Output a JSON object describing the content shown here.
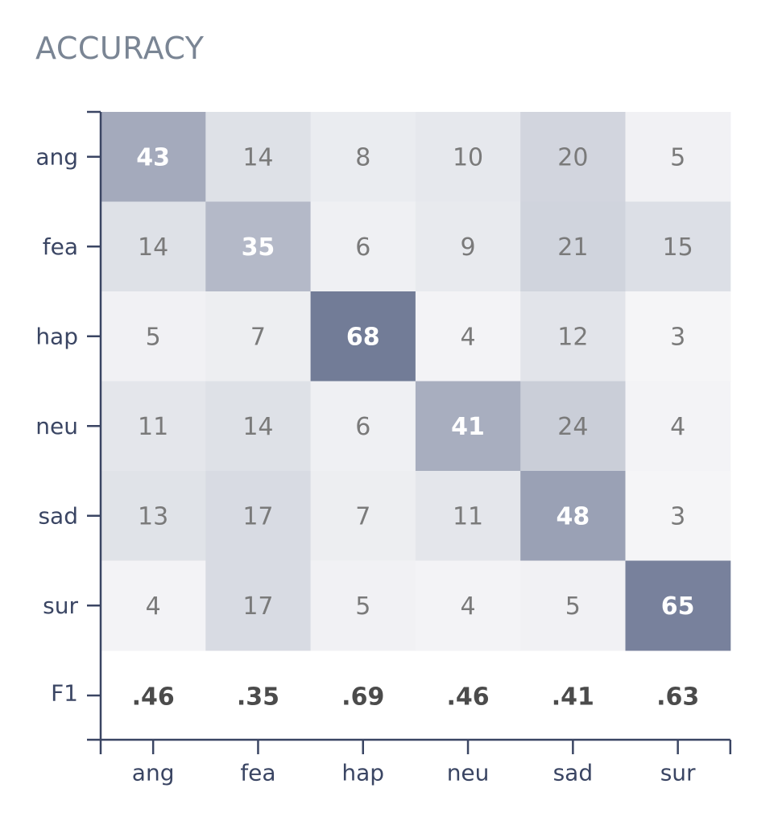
{
  "chart_data": {
    "type": "heatmap",
    "title": "ACCURACY",
    "rows": [
      "ang",
      "fea",
      "hap",
      "neu",
      "sad",
      "sur"
    ],
    "columns": [
      "ang",
      "fea",
      "hap",
      "neu",
      "sad",
      "sur"
    ],
    "values": [
      [
        43,
        14,
        8,
        10,
        20,
        5
      ],
      [
        14,
        35,
        6,
        9,
        21,
        15
      ],
      [
        5,
        7,
        68,
        4,
        12,
        3
      ],
      [
        11,
        14,
        6,
        41,
        24,
        4
      ],
      [
        13,
        17,
        7,
        11,
        48,
        3
      ],
      [
        4,
        17,
        5,
        4,
        5,
        65
      ]
    ],
    "f1_label": "F1",
    "f1": [
      ".46",
      ".35",
      ".69",
      ".46",
      ".41",
      ".63"
    ],
    "colors": {
      "high": "#6b7592",
      "low": "#ffffff",
      "axis": "#3a4563",
      "text_dark": "#7a7a7a",
      "text_light": "#ffffff"
    }
  }
}
